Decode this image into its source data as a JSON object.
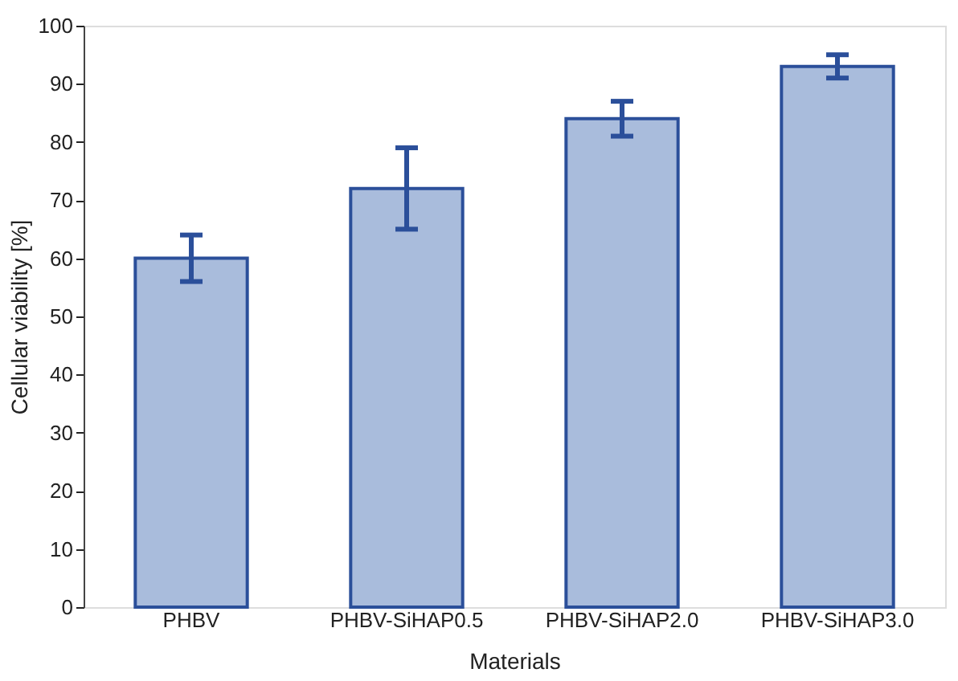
{
  "chart_data": {
    "type": "bar",
    "xlabel": "Materials",
    "ylabel": "Cellular viability [%]",
    "categories": [
      "PHBV",
      "PHBV-SiHAP0.5",
      "PHBV-SiHAP2.0",
      "PHBV-SiHAP3.0"
    ],
    "series": [
      {
        "color": "#2b4f9a",
        "values": [
          60,
          72,
          84,
          93
        ],
        "errors": [
          4,
          7,
          3,
          2
        ]
      }
    ],
    "ylim": [
      0,
      100
    ],
    "yticks": [
      0,
      10,
      20,
      30,
      40,
      50,
      60,
      70,
      80,
      90,
      100
    ],
    "grid": false
  }
}
